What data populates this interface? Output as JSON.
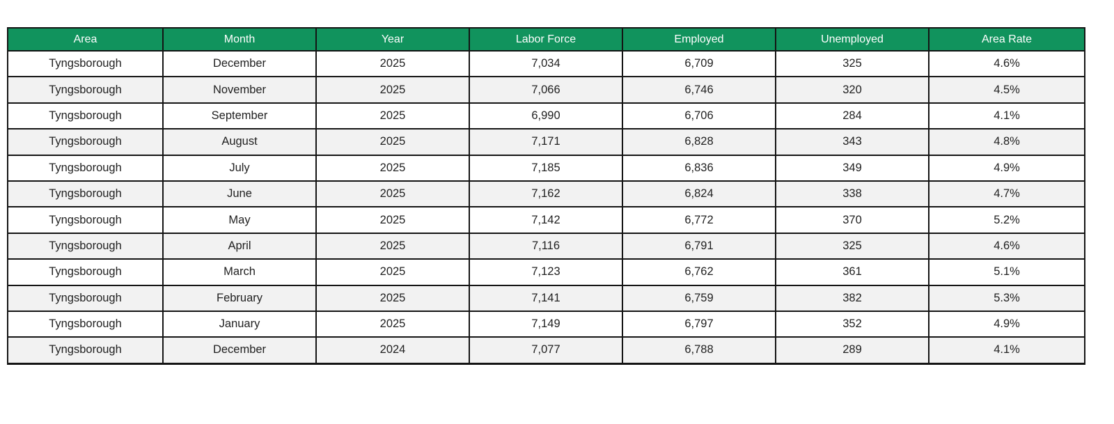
{
  "table": {
    "columns": [
      {
        "key": "area",
        "label": "Area"
      },
      {
        "key": "month",
        "label": "Month"
      },
      {
        "key": "year",
        "label": "Year"
      },
      {
        "key": "labor_force",
        "label": "Labor Force"
      },
      {
        "key": "employed",
        "label": "Employed"
      },
      {
        "key": "unemployed",
        "label": "Unemployed"
      },
      {
        "key": "area_rate",
        "label": "Area Rate"
      }
    ],
    "rows": [
      {
        "area": "Tyngsborough",
        "month": "December",
        "year": "2025",
        "labor_force": "7,034",
        "employed": "6,709",
        "unemployed": "325",
        "area_rate": "4.6%"
      },
      {
        "area": "Tyngsborough",
        "month": "November",
        "year": "2025",
        "labor_force": "7,066",
        "employed": "6,746",
        "unemployed": "320",
        "area_rate": "4.5%"
      },
      {
        "area": "Tyngsborough",
        "month": "September",
        "year": "2025",
        "labor_force": "6,990",
        "employed": "6,706",
        "unemployed": "284",
        "area_rate": "4.1%"
      },
      {
        "area": "Tyngsborough",
        "month": "August",
        "year": "2025",
        "labor_force": "7,171",
        "employed": "6,828",
        "unemployed": "343",
        "area_rate": "4.8%"
      },
      {
        "area": "Tyngsborough",
        "month": "July",
        "year": "2025",
        "labor_force": "7,185",
        "employed": "6,836",
        "unemployed": "349",
        "area_rate": "4.9%"
      },
      {
        "area": "Tyngsborough",
        "month": "June",
        "year": "2025",
        "labor_force": "7,162",
        "employed": "6,824",
        "unemployed": "338",
        "area_rate": "4.7%"
      },
      {
        "area": "Tyngsborough",
        "month": "May",
        "year": "2025",
        "labor_force": "7,142",
        "employed": "6,772",
        "unemployed": "370",
        "area_rate": "5.2%"
      },
      {
        "area": "Tyngsborough",
        "month": "April",
        "year": "2025",
        "labor_force": "7,116",
        "employed": "6,791",
        "unemployed": "325",
        "area_rate": "4.6%"
      },
      {
        "area": "Tyngsborough",
        "month": "March",
        "year": "2025",
        "labor_force": "7,123",
        "employed": "6,762",
        "unemployed": "361",
        "area_rate": "5.1%"
      },
      {
        "area": "Tyngsborough",
        "month": "February",
        "year": "2025",
        "labor_force": "7,141",
        "employed": "6,759",
        "unemployed": "382",
        "area_rate": "5.3%"
      },
      {
        "area": "Tyngsborough",
        "month": "January",
        "year": "2025",
        "labor_force": "7,149",
        "employed": "6,797",
        "unemployed": "352",
        "area_rate": "4.9%"
      },
      {
        "area": "Tyngsborough",
        "month": "December",
        "year": "2024",
        "labor_force": "7,077",
        "employed": "6,788",
        "unemployed": "289",
        "area_rate": "4.1%"
      }
    ],
    "header_bg": "#11935d",
    "alt_row_bg": "#f2f2f2",
    "border_color": "#141414"
  }
}
